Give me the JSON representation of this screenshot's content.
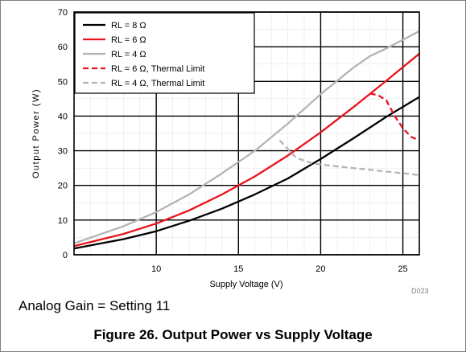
{
  "chart_data": {
    "type": "line",
    "xlabel": "Supply Voltage (V)",
    "ylabel": "Output Power (W)",
    "xlim": [
      5,
      26
    ],
    "ylim": [
      0,
      70
    ],
    "xticks": [
      10,
      15,
      20,
      25
    ],
    "yticks": [
      0,
      10,
      20,
      30,
      40,
      50,
      60,
      70
    ],
    "grid": true,
    "legend_position": "top-left",
    "series": [
      {
        "name": "RL = 8 Ω",
        "color": "#000000",
        "style": "solid",
        "x": [
          5,
          8,
          10,
          12,
          14,
          16,
          18,
          20,
          22,
          24,
          26
        ],
        "y": [
          1.8,
          4.5,
          6.8,
          9.8,
          13.3,
          17.4,
          22.0,
          27.6,
          33.6,
          39.8,
          45.5
        ]
      },
      {
        "name": "RL = 6 Ω",
        "color": "#e8141c",
        "style": "solid",
        "x": [
          5,
          8,
          10,
          12,
          14,
          16,
          18,
          20,
          22,
          24,
          26
        ],
        "y": [
          2.5,
          6.0,
          9.0,
          12.8,
          17.4,
          22.6,
          28.6,
          35.3,
          42.6,
          50.2,
          58.0
        ]
      },
      {
        "name": "RL = 4 Ω",
        "color": "#b4b4b4",
        "style": "solid",
        "x": [
          5,
          8,
          10,
          12,
          14,
          16,
          18,
          20,
          22,
          23,
          24,
          26
        ],
        "y": [
          3.3,
          8.2,
          12.3,
          17.4,
          23.5,
          30.0,
          37.8,
          46.3,
          54.0,
          57.3,
          59.5,
          64.5
        ]
      },
      {
        "name": "RL = 6 Ω, Thermal Limit",
        "color": "#e8141c",
        "style": "dashed",
        "x": [
          23,
          23.5,
          24,
          24.5,
          25,
          25.5,
          26
        ],
        "y": [
          46.5,
          46.0,
          44.5,
          40.0,
          36.5,
          34.0,
          33.0
        ]
      },
      {
        "name": "RL = 4 Ω, Thermal Limit",
        "color": "#b4b4b4",
        "style": "dashed",
        "x": [
          17.5,
          18.5,
          19.5,
          21,
          23,
          25,
          26
        ],
        "y": [
          33.0,
          28.0,
          26.3,
          25.5,
          24.5,
          23.5,
          23.0
        ]
      }
    ]
  },
  "chart_id": "D023",
  "annotation": "Analog Gain = Setting 11",
  "caption": "Figure 26. Output Power vs Supply Voltage"
}
